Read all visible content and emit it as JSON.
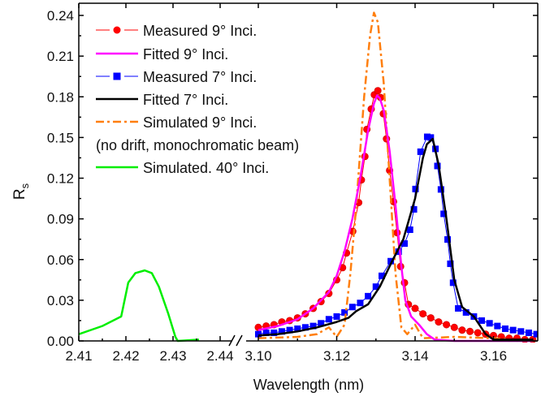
{
  "chart_data": {
    "type": "line",
    "title": "",
    "xlabel": "Wavelength (nm)",
    "ylabel": "R",
    "ylabel_sub": "s",
    "ylim": [
      0,
      0.24
    ],
    "yticks": [
      "0.00",
      "0.03",
      "0.06",
      "0.09",
      "0.12",
      "0.15",
      "0.18",
      "0.21",
      "0.24"
    ],
    "x_break": true,
    "xlim_left": [
      2.41,
      2.4425
    ],
    "xlim_right": [
      3.1,
      3.171
    ],
    "xticks_left": [
      "2.41",
      "2.42",
      "2.43",
      "2.44"
    ],
    "xticks_right": [
      "3.10",
      "3.12",
      "3.14",
      "3.16"
    ],
    "legend_position": "top-left",
    "series": [
      {
        "name": "Measured 9° Inci.",
        "color": "#ff0000",
        "marker": "circle",
        "segment": "right",
        "x": [
          3.1,
          3.102,
          3.104,
          3.106,
          3.108,
          3.11,
          3.112,
          3.114,
          3.116,
          3.118,
          3.12,
          3.1215,
          3.1225,
          3.1241,
          3.1256,
          3.1263,
          3.1272,
          3.1277,
          3.1288,
          3.1296,
          3.1305,
          3.1312,
          3.1319,
          3.1327,
          3.1335,
          3.1345,
          3.1354,
          3.1363,
          3.1373,
          3.1383,
          3.14,
          3.142,
          3.144,
          3.146,
          3.148,
          3.15,
          3.152,
          3.154,
          3.156,
          3.158,
          3.16,
          3.162,
          3.164,
          3.166,
          3.168,
          3.17
        ],
        "y": [
          0.01,
          0.011,
          0.012,
          0.014,
          0.015,
          0.017,
          0.02,
          0.024,
          0.029,
          0.035,
          0.045,
          0.054,
          0.0648,
          0.0808,
          0.102,
          0.1187,
          0.136,
          0.156,
          0.171,
          0.1815,
          0.1845,
          0.1795,
          0.1675,
          0.149,
          0.1257,
          0.1027,
          0.0798,
          0.0549,
          0.0429,
          0.0269,
          0.024,
          0.02,
          0.017,
          0.014,
          0.012,
          0.01,
          0.008,
          0.007,
          0.006,
          0.005,
          0.004,
          0.003,
          0.002,
          0.002,
          0.001,
          0.001
        ]
      },
      {
        "name": "Fitted 9° Inci.",
        "color": "#ff00ff",
        "marker": "none",
        "segment": "right",
        "x": [
          3.1,
          3.105,
          3.11,
          3.114,
          3.118,
          3.12,
          3.122,
          3.124,
          3.126,
          3.128,
          3.1295,
          3.1303,
          3.131,
          3.132,
          3.1335,
          3.135,
          3.1365,
          3.1375,
          3.139,
          3.141,
          3.143,
          3.145,
          3.15,
          3.16,
          3.17
        ],
        "y": [
          0.008,
          0.011,
          0.016,
          0.024,
          0.036,
          0.048,
          0.066,
          0.09,
          0.12,
          0.155,
          0.175,
          0.181,
          0.179,
          0.17,
          0.14,
          0.1,
          0.055,
          0.03,
          0.018,
          0.012,
          0.005,
          0.001,
          0.0,
          0.0,
          0.0
        ]
      },
      {
        "name": "Measured 7° Inci.",
        "color": "#0000ff",
        "marker": "square",
        "segment": "right",
        "x": [
          3.1,
          3.102,
          3.104,
          3.106,
          3.108,
          3.11,
          3.112,
          3.114,
          3.116,
          3.118,
          3.12,
          3.122,
          3.124,
          3.126,
          3.128,
          3.13,
          3.1315,
          3.1338,
          3.1358,
          3.1373,
          3.1387,
          3.1397,
          3.1401,
          3.1414,
          3.1431,
          3.144,
          3.1452,
          3.1457,
          3.1466,
          3.1473,
          3.1483,
          3.149,
          3.1497,
          3.151,
          3.153,
          3.155,
          3.157,
          3.159,
          3.161,
          3.163,
          3.165,
          3.167,
          3.169,
          3.171
        ],
        "y": [
          0.005,
          0.006,
          0.006,
          0.007,
          0.008,
          0.009,
          0.01,
          0.011,
          0.013,
          0.016,
          0.018,
          0.021,
          0.025,
          0.028,
          0.033,
          0.04,
          0.048,
          0.0588,
          0.0658,
          0.0718,
          0.082,
          0.097,
          0.112,
          0.1395,
          0.1505,
          0.15,
          0.1416,
          0.129,
          0.1117,
          0.0937,
          0.0748,
          0.0569,
          0.0429,
          0.024,
          0.021,
          0.018,
          0.015,
          0.013,
          0.011,
          0.009,
          0.008,
          0.007,
          0.006,
          0.005
        ]
      },
      {
        "name": "Fitted 7° Inci.",
        "color": "#000000",
        "marker": "none",
        "segment": "right",
        "x": [
          3.1,
          3.105,
          3.11,
          3.115,
          3.12,
          3.123,
          3.125,
          3.128,
          3.131,
          3.134,
          3.137,
          3.14,
          3.142,
          3.143,
          3.1445,
          3.146,
          3.148,
          3.15,
          3.152,
          3.155,
          3.158,
          3.16,
          3.17
        ],
        "y": [
          0.004,
          0.005,
          0.007,
          0.01,
          0.014,
          0.017,
          0.022,
          0.027,
          0.04,
          0.058,
          0.075,
          0.105,
          0.135,
          0.145,
          0.149,
          0.13,
          0.09,
          0.045,
          0.025,
          0.018,
          0.005,
          0.001,
          0.001
        ]
      },
      {
        "name": "Simulated 9° Inci.",
        "name2": "(no drift, monochromatic beam)",
        "color": "#ff7f0e",
        "marker": "none",
        "dash": "dashdot",
        "segment": "right",
        "x": [
          3.1,
          3.11,
          3.115,
          3.118,
          3.12,
          3.122,
          3.1235,
          3.125,
          3.127,
          3.1285,
          3.1295,
          3.1305,
          3.132,
          3.1335,
          3.135,
          3.1365,
          3.138,
          3.14,
          3.142,
          3.15,
          3.16,
          3.168
        ],
        "y": [
          0.002,
          0.003,
          0.005,
          0.01,
          0.003,
          0.012,
          0.05,
          0.1,
          0.18,
          0.225,
          0.242,
          0.235,
          0.19,
          0.12,
          0.05,
          0.01,
          0.005,
          0.012,
          0.002,
          0.003,
          0.002,
          0.0
        ]
      },
      {
        "name": "Simulated. 40° Inci.",
        "color": "#00ee00",
        "marker": "none",
        "segment": "left",
        "x": [
          2.41,
          2.415,
          2.419,
          2.4205,
          2.422,
          2.424,
          2.4255,
          2.427,
          2.429,
          2.4305,
          2.431,
          2.4355
        ],
        "y": [
          0.005,
          0.011,
          0.018,
          0.043,
          0.05,
          0.052,
          0.05,
          0.04,
          0.02,
          0.003,
          0.0,
          0.001
        ]
      }
    ]
  }
}
